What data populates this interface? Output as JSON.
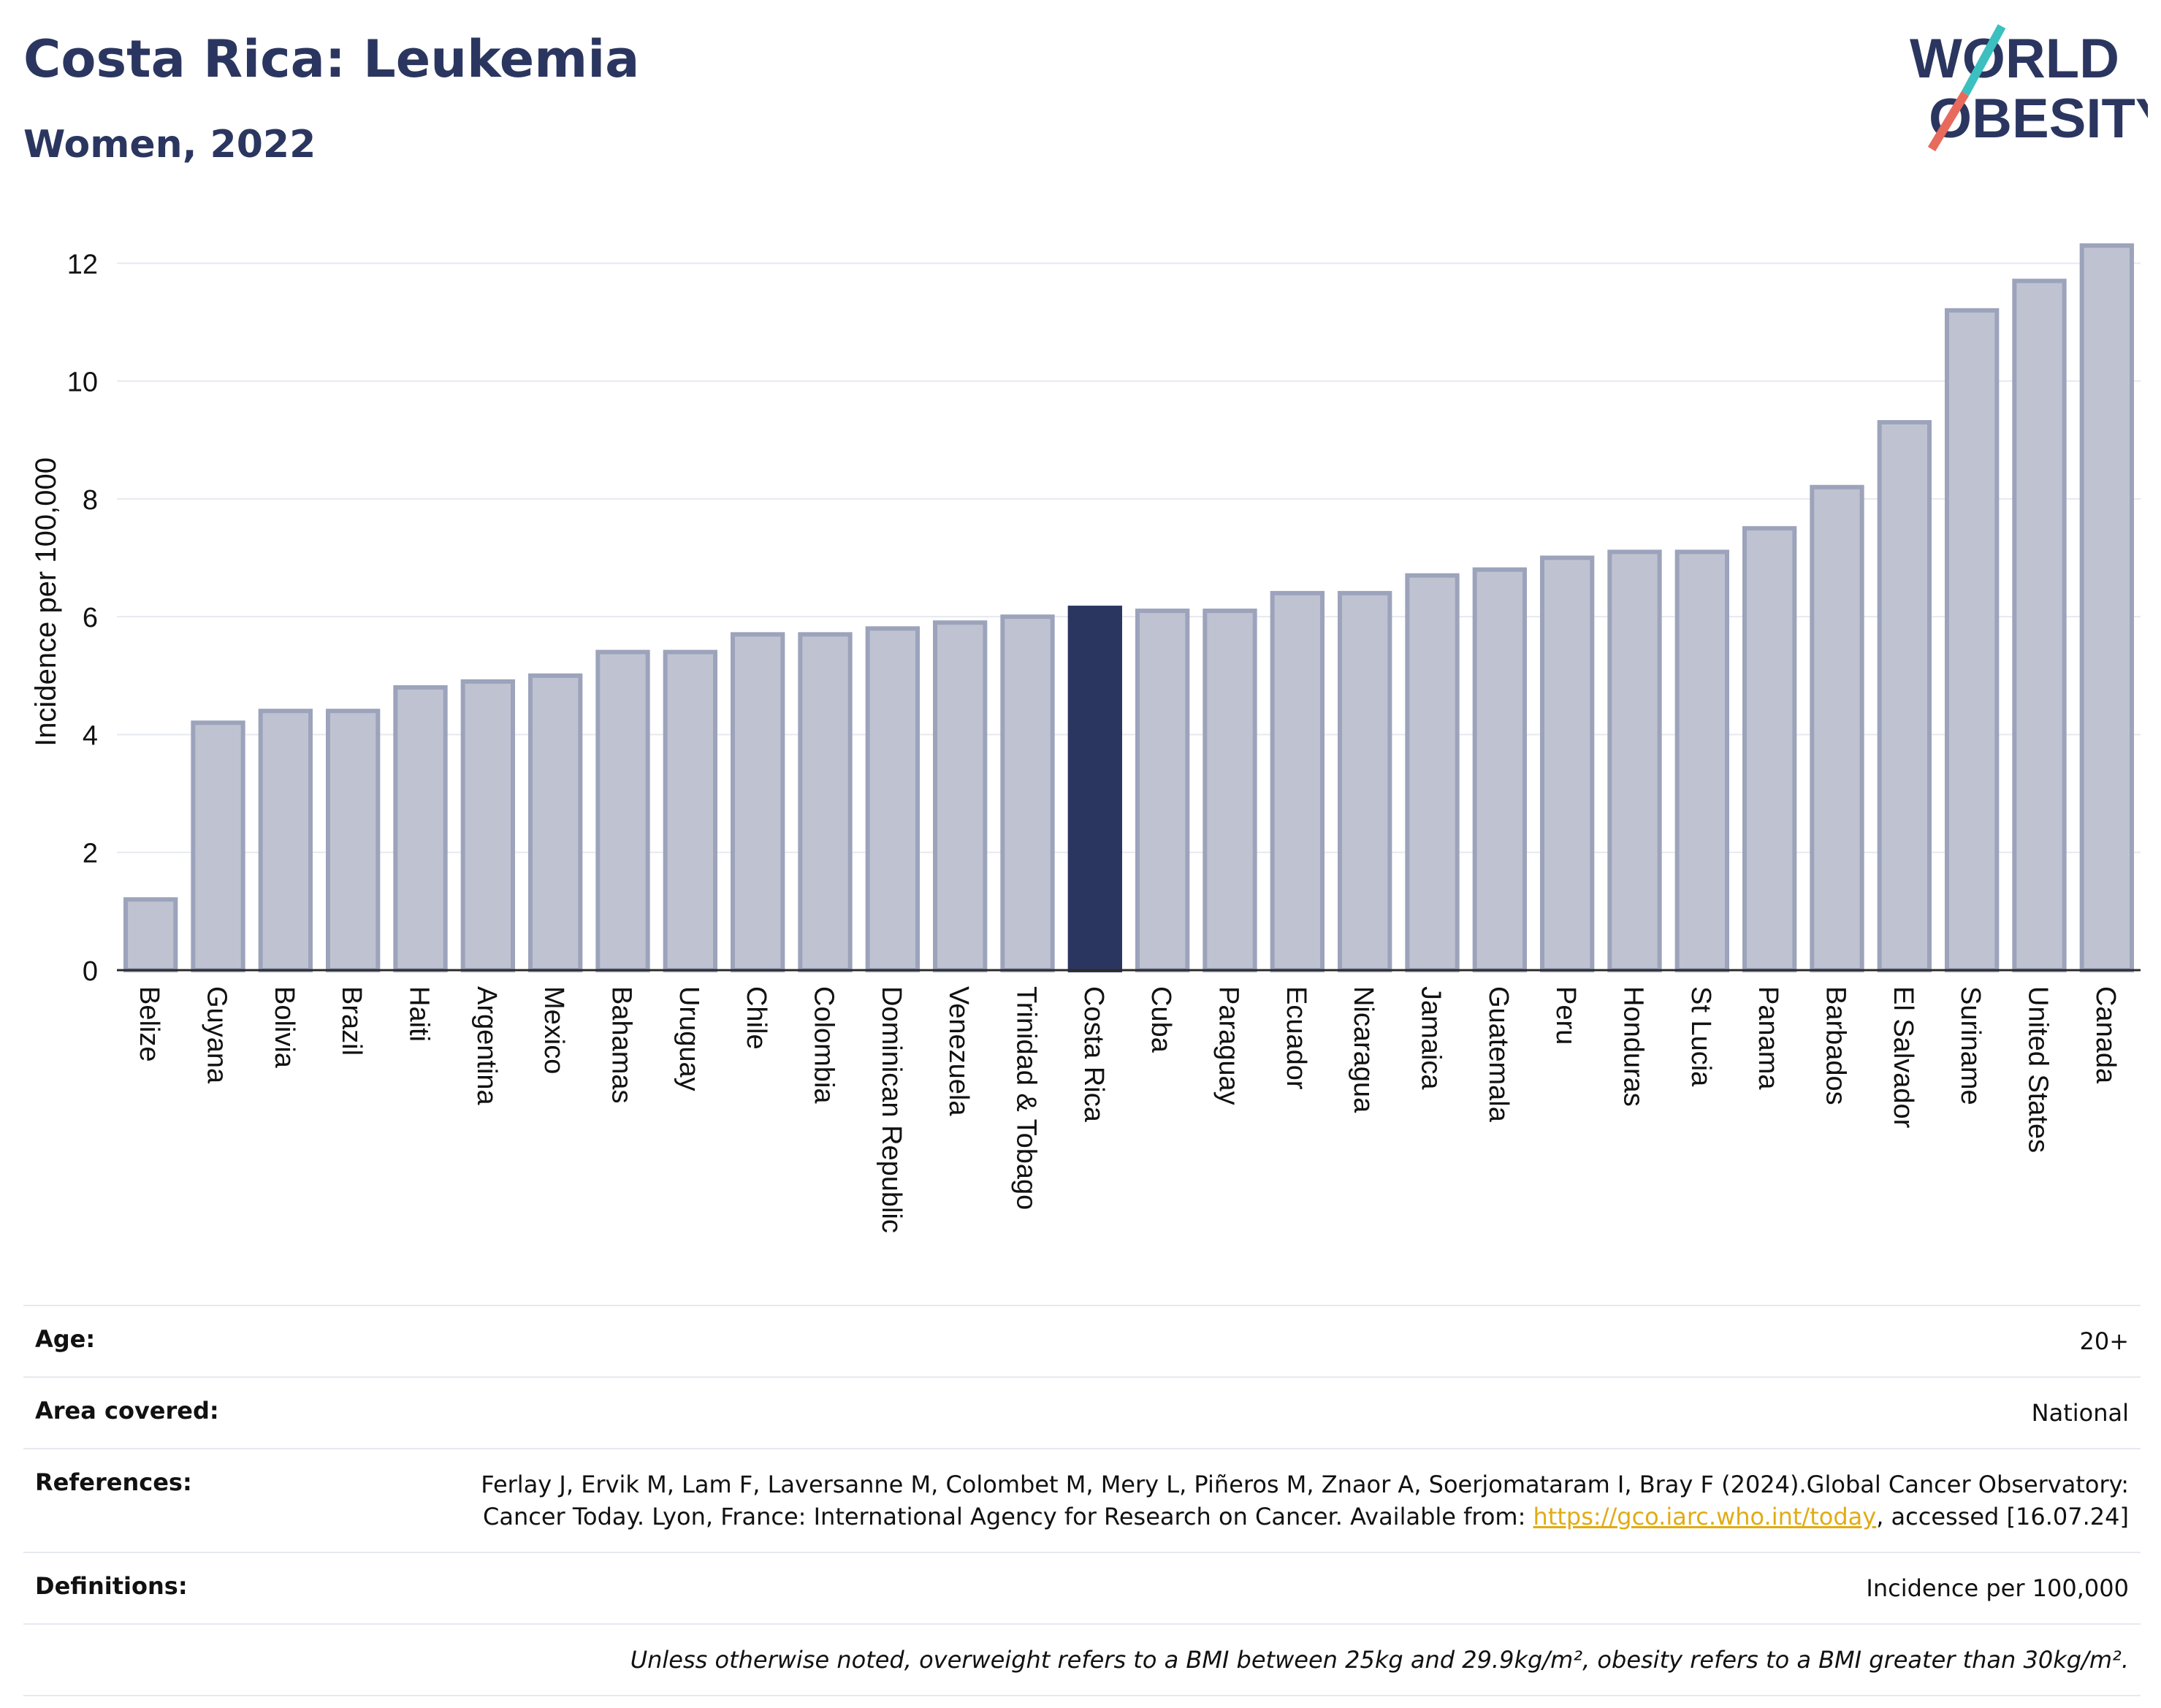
{
  "header": {
    "title": "Costa Rica: Leukemia",
    "subtitle": "Women, 2022",
    "logo_line1": "WORLD",
    "logo_line2": "OBESITY"
  },
  "colors": {
    "highlight": "#2b3660",
    "bar_fill": "#bfc3d1",
    "bar_stroke": "#9ca3bb",
    "grid": "#e6e9ef",
    "link": "#e0ac14"
  },
  "chart_data": {
    "type": "bar",
    "ylabel": "Incidence per 100,000",
    "ylim": [
      0,
      12.5
    ],
    "yticks": [
      0,
      2,
      4,
      6,
      8,
      10,
      12
    ],
    "grid": true,
    "highlight_category": "Costa Rica",
    "categories": [
      "Belize",
      "Guyana",
      "Bolivia",
      "Brazil",
      "Haiti",
      "Argentina",
      "Mexico",
      "Bahamas",
      "Uruguay",
      "Chile",
      "Colombia",
      "Dominican Republic",
      "Venezuela",
      "Trinidad & Tobago",
      "Costa Rica",
      "Cuba",
      "Paraguay",
      "Ecuador",
      "Nicaragua",
      "Jamaica",
      "Guatemala",
      "Peru",
      "Honduras",
      "St Lucia",
      "Panama",
      "Barbados",
      "El Salvador",
      "Suriname",
      "United States",
      "Canada"
    ],
    "values": [
      1.2,
      4.2,
      4.4,
      4.4,
      4.8,
      4.9,
      5.0,
      5.4,
      5.4,
      5.7,
      5.7,
      5.8,
      5.9,
      6.0,
      6.15,
      6.1,
      6.1,
      6.4,
      6.4,
      6.7,
      6.8,
      7.0,
      7.1,
      7.1,
      7.5,
      8.2,
      9.3,
      11.2,
      11.7,
      12.3
    ]
  },
  "info": {
    "age_label": "Age:",
    "age_value": "20+",
    "area_label": "Area covered:",
    "area_value": "National",
    "references_label": "References:",
    "references_text": "Ferlay J, Ervik M, Lam F, Laversanne M, Colombet M, Mery L, Piñeros M, Znaor A, Soerjomataram I, Bray F (2024).Global Cancer Observatory: Cancer Today. Lyon, France: International Agency for Research on Cancer. Available from: ",
    "references_link": "https://gco.iarc.who.int/today",
    "references_suffix": ", accessed [16.07.24]",
    "definitions_label": "Definitions:",
    "definitions_value": "Incidence per 100,000",
    "note": "Unless otherwise noted, overweight refers to a BMI between 25kg and 29.9kg/m², obesity refers to a BMI greater than 30kg/m²."
  }
}
